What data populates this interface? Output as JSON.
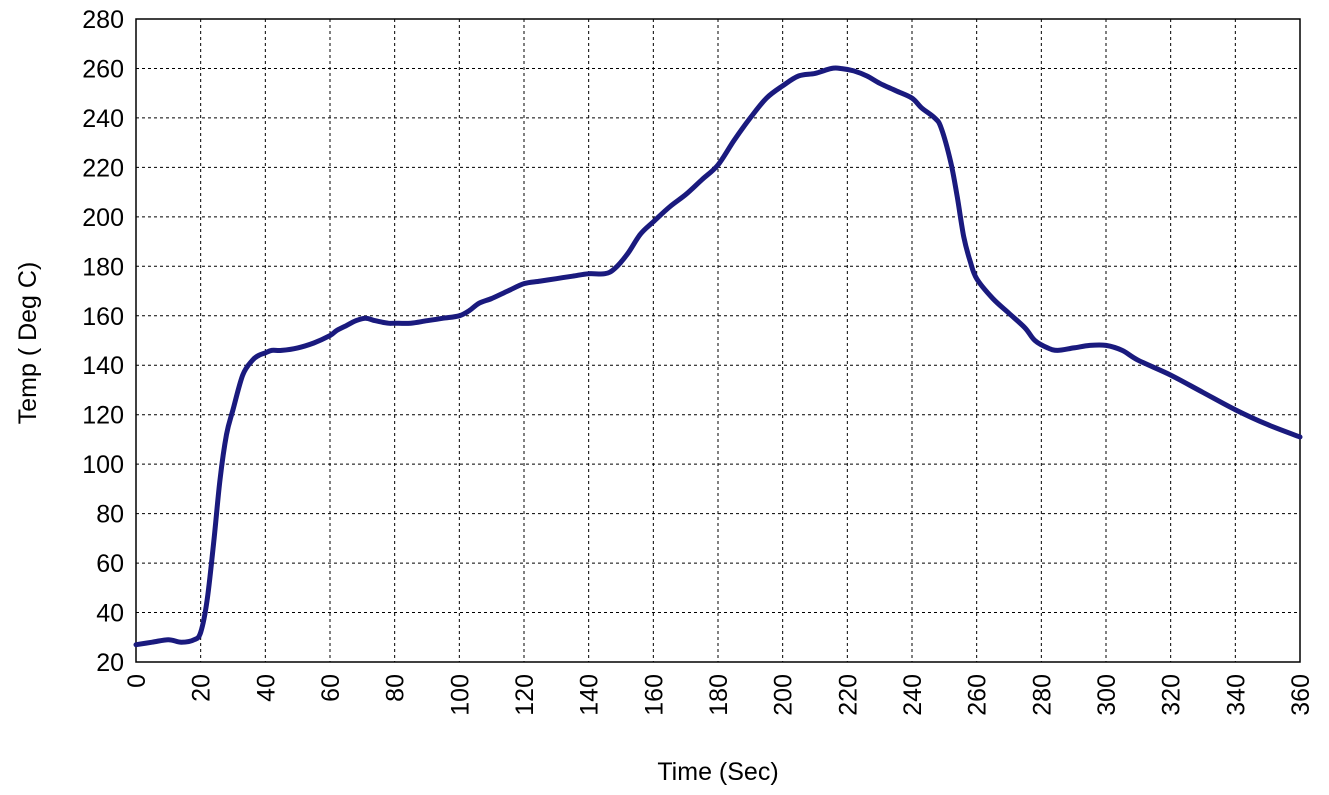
{
  "chart_data": {
    "type": "line",
    "title": "",
    "xlabel": "Time (Sec)",
    "ylabel": "Temp ( Deg C)",
    "xlim": [
      0,
      360
    ],
    "ylim": [
      20,
      280
    ],
    "x_ticks": [
      0,
      20,
      40,
      60,
      80,
      100,
      120,
      140,
      160,
      180,
      200,
      220,
      240,
      260,
      280,
      300,
      320,
      340,
      360
    ],
    "y_ticks": [
      20,
      40,
      60,
      80,
      100,
      120,
      140,
      160,
      180,
      200,
      220,
      240,
      260,
      280
    ],
    "grid": true,
    "legend": "none",
    "series": [
      {
        "color": "#1a1a7e",
        "x": [
          0,
          5,
          10,
          14,
          18,
          20,
          22,
          24,
          26,
          28,
          30,
          33,
          36,
          38,
          40,
          42,
          45,
          50,
          55,
          60,
          62,
          65,
          68,
          71,
          74,
          78,
          80,
          85,
          90,
          95,
          100,
          103,
          106,
          110,
          115,
          120,
          125,
          130,
          135,
          140,
          145,
          148,
          152,
          156,
          160,
          165,
          170,
          175,
          180,
          185,
          190,
          195,
          200,
          205,
          210,
          215,
          218,
          222,
          226,
          230,
          235,
          240,
          243,
          247,
          249,
          252,
          254,
          256,
          258,
          260,
          265,
          270,
          275,
          278,
          282,
          285,
          290,
          295,
          300,
          305,
          310,
          320,
          330,
          340,
          350,
          360
        ],
        "y": [
          27,
          28,
          29,
          28,
          29,
          32,
          45,
          68,
          94,
          112,
          122,
          136,
          142,
          144,
          145,
          146,
          146,
          147,
          149,
          152,
          154,
          156,
          158,
          159,
          158,
          157,
          157,
          157,
          158,
          159,
          160,
          162,
          165,
          167,
          170,
          173,
          174,
          175,
          176,
          177,
          177,
          179,
          185,
          193,
          198,
          204,
          209,
          215,
          221,
          231,
          240,
          248,
          253,
          257,
          258,
          260,
          260,
          259,
          257,
          254,
          251,
          248,
          244,
          240,
          236,
          222,
          208,
          192,
          182,
          175,
          167,
          161,
          155,
          150,
          147,
          146,
          147,
          148,
          148,
          146,
          142,
          136,
          129,
          122,
          116,
          111
        ]
      }
    ]
  }
}
